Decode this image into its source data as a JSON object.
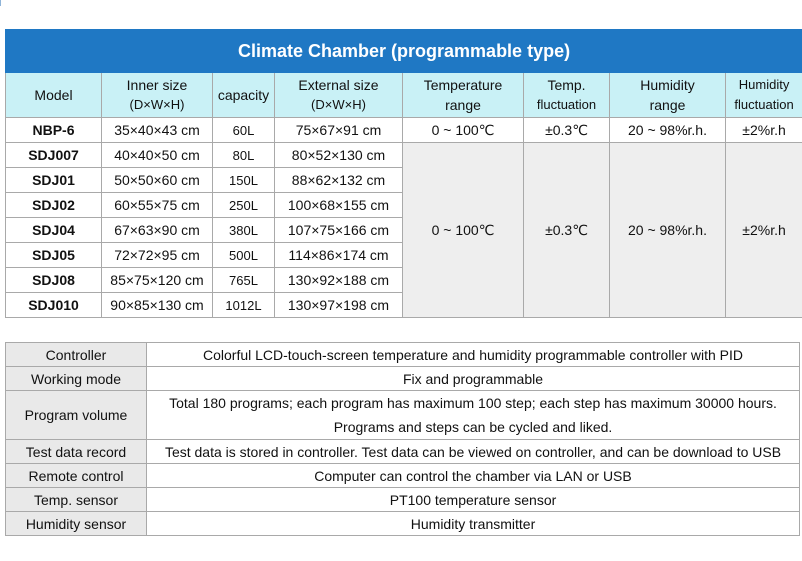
{
  "spec_table": {
    "title": "Climate Chamber  (programmable type)",
    "headers": {
      "model": "Model",
      "inner_size": "Inner size",
      "inner_size_unit": "(D×W×H)",
      "capacity": "capacity",
      "external_size": "External size",
      "external_size_unit": "(D×W×H)",
      "temperature_range_1": "Temperature",
      "temperature_range_2": "range",
      "temp_fluct_1": "Temp.",
      "temp_fluct_2": "fluctuation",
      "humidity_range_1": "Humidity",
      "humidity_range_2": "range",
      "humidity_fluct_1": "Humidity",
      "humidity_fluct_2": "fluctuation"
    },
    "first_row": {
      "model": "NBP-6",
      "inner": "35×40×43 cm",
      "capacity": "60L",
      "external": "75×67×91 cm",
      "temperature_range": "0 ~ 100℃",
      "temp_fluctuation": "±0.3℃",
      "humidity_range": "20 ~ 98%r.h.",
      "humidity_fluctuation": "±2%r.h"
    },
    "rows": [
      {
        "model": "SDJ007",
        "inner": "40×40×50 cm",
        "capacity": "80L",
        "external": "80×52×130 cm"
      },
      {
        "model": "SDJ01",
        "inner": "50×50×60 cm",
        "capacity": "150L",
        "external": "88×62×132 cm"
      },
      {
        "model": "SDJ02",
        "inner": "60×55×75 cm",
        "capacity": "250L",
        "external": "100×68×155 cm"
      },
      {
        "model": "SDJ04",
        "inner": "67×63×90 cm",
        "capacity": "380L",
        "external": "107×75×166 cm"
      },
      {
        "model": "SDJ05",
        "inner": "72×72×95 cm",
        "capacity": "500L",
        "external": "114×86×174 cm"
      },
      {
        "model": "SDJ08",
        "inner": "85×75×120 cm",
        "capacity": "765L",
        "external": "130×92×188 cm"
      },
      {
        "model": "SDJ010",
        "inner": "90×85×130 cm",
        "capacity": "1012L",
        "external": "130×97×198 cm"
      }
    ],
    "shared": {
      "temperature_range": "0 ~ 100℃",
      "temp_fluctuation": "±0.3℃",
      "humidity_range": "20 ~ 98%r.h.",
      "humidity_fluctuation": "±2%r.h"
    }
  },
  "info_table": [
    {
      "label": "Controller",
      "value": "Colorful LCD-touch-screen temperature and humidity programmable controller with PID"
    },
    {
      "label": "Working mode",
      "value": "Fix and programmable"
    },
    {
      "label": "Program volume",
      "value": "Total 180 programs; each program has maximum 100 step; each step has maximum 30000 hours.",
      "value2": "Programs and steps can be cycled and liked."
    },
    {
      "label": "Test data record",
      "value": "Test data is stored in controller. Test data can be viewed on controller, and can be download to USB"
    },
    {
      "label": "Remote control",
      "value": "Computer can control the chamber via LAN or USB"
    },
    {
      "label": "Temp. sensor",
      "value": "PT100 temperature sensor"
    },
    {
      "label": "Humidity sensor",
      "value": "Humidity transmitter"
    }
  ]
}
